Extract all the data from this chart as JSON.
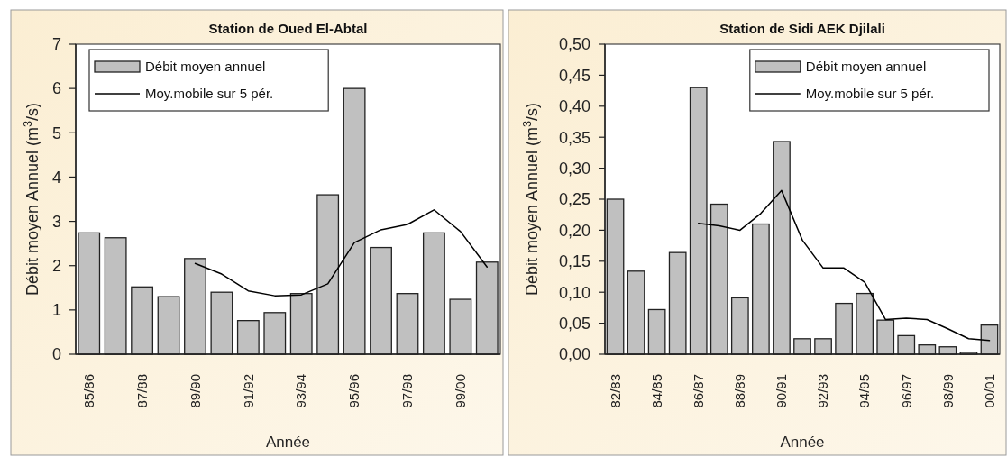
{
  "chart_data": [
    {
      "type": "bar",
      "title": "Station de Oued El-Abtal",
      "xlabel": "Année",
      "ylabel": "Débit moyen Annuel (m$^{3}$/s)",
      "categories": [
        "85/86",
        null,
        "87/88",
        null,
        "89/90",
        null,
        "91/92",
        null,
        "93/94",
        null,
        "95/96",
        null,
        "97/98",
        null,
        "99/00",
        null
      ],
      "series": [
        {
          "name": "Débit moyen annuel",
          "color": "#c0c0c0",
          "values": [
            2.74,
            2.63,
            1.52,
            1.3,
            2.16,
            1.4,
            0.76,
            0.94,
            1.37,
            3.6,
            6.0,
            2.41,
            1.37,
            2.74,
            1.24,
            2.08
          ]
        },
        {
          "name": "Moy.mobile sur 5 pér.",
          "type": "line",
          "color": "#000000",
          "values": [
            null,
            null,
            null,
            null,
            2.05,
            1.81,
            1.43,
            1.32,
            1.34,
            1.59,
            2.52,
            2.81,
            2.93,
            3.26,
            2.77,
            1.97
          ]
        }
      ],
      "ylim": [
        0,
        7
      ],
      "yticks": [
        0,
        1,
        2,
        3,
        4,
        5,
        6,
        7
      ],
      "legend": "top left"
    },
    {
      "type": "bar",
      "title": "Station de  Sidi AEK Djilali",
      "xlabel": "Année",
      "ylabel": "Débit moyen Annuel (m$^{3}$/s)",
      "categories": [
        "82/83",
        null,
        "84/85",
        null,
        "86/87",
        null,
        "88/89",
        null,
        "90/91",
        null,
        "92/93",
        null,
        "94/95",
        null,
        "96/97",
        null,
        "98/99",
        null,
        "00/01"
      ],
      "series": [
        {
          "name": "Débit moyen annuel",
          "color": "#c0c0c0",
          "values": [
            0.25,
            0.134,
            0.072,
            0.164,
            0.43,
            0.242,
            0.091,
            0.21,
            0.343,
            0.025,
            0.025,
            0.082,
            0.098,
            0.055,
            0.03,
            0.015,
            0.012,
            0.003,
            0.047
          ]
        },
        {
          "name": "Moy.mobile sur 5 pér.",
          "type": "line",
          "color": "#000000",
          "values": [
            null,
            null,
            null,
            null,
            0.211,
            0.207,
            0.2,
            0.227,
            0.264,
            0.184,
            0.139,
            0.139,
            0.116,
            0.056,
            0.058,
            0.056,
            0.041,
            0.025,
            0.022
          ]
        }
      ],
      "ylim": [
        0,
        0.5
      ],
      "yticks": [
        {
          "value": 0,
          "label": "0,00"
        },
        {
          "value": 0.05,
          "label": "0,05"
        },
        {
          "value": 0.1,
          "label": "0,10"
        },
        {
          "value": 0.15,
          "label": "0,15"
        },
        {
          "value": 0.2,
          "label": "0,20"
        },
        {
          "value": 0.25,
          "label": "0,25"
        },
        {
          "value": 0.3,
          "label": "0,30"
        },
        {
          "value": 0.35,
          "label": "0,35"
        },
        {
          "value": 0.4,
          "label": "0,40"
        },
        {
          "value": 0.45,
          "label": "0,45"
        },
        {
          "value": 0.5,
          "label": "0,50"
        }
      ],
      "legend": "top right"
    }
  ]
}
